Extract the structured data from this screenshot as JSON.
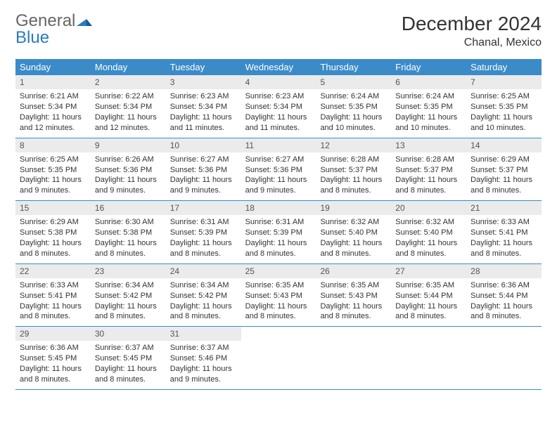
{
  "logo": {
    "word1": "General",
    "word2": "Blue"
  },
  "title": "December 2024",
  "location": "Chanal, Mexico",
  "colors": {
    "header_bg": "#3b8bc9",
    "header_text": "#ffffff",
    "daynum_bg": "#ebebeb",
    "row_border": "#3b8bc9",
    "text": "#333333",
    "logo_gray": "#666666",
    "logo_blue": "#2b7bbf",
    "background": "#ffffff"
  },
  "fonts": {
    "title_pt": 28,
    "location_pt": 16,
    "dayheader_pt": 13,
    "daynum_pt": 12,
    "body_pt": 11
  },
  "day_names": [
    "Sunday",
    "Monday",
    "Tuesday",
    "Wednesday",
    "Thursday",
    "Friday",
    "Saturday"
  ],
  "weeks": [
    [
      {
        "n": "1",
        "sunrise": "Sunrise: 6:21 AM",
        "sunset": "Sunset: 5:34 PM",
        "daylight": "Daylight: 11 hours and 12 minutes."
      },
      {
        "n": "2",
        "sunrise": "Sunrise: 6:22 AM",
        "sunset": "Sunset: 5:34 PM",
        "daylight": "Daylight: 11 hours and 12 minutes."
      },
      {
        "n": "3",
        "sunrise": "Sunrise: 6:23 AM",
        "sunset": "Sunset: 5:34 PM",
        "daylight": "Daylight: 11 hours and 11 minutes."
      },
      {
        "n": "4",
        "sunrise": "Sunrise: 6:23 AM",
        "sunset": "Sunset: 5:34 PM",
        "daylight": "Daylight: 11 hours and 11 minutes."
      },
      {
        "n": "5",
        "sunrise": "Sunrise: 6:24 AM",
        "sunset": "Sunset: 5:35 PM",
        "daylight": "Daylight: 11 hours and 10 minutes."
      },
      {
        "n": "6",
        "sunrise": "Sunrise: 6:24 AM",
        "sunset": "Sunset: 5:35 PM",
        "daylight": "Daylight: 11 hours and 10 minutes."
      },
      {
        "n": "7",
        "sunrise": "Sunrise: 6:25 AM",
        "sunset": "Sunset: 5:35 PM",
        "daylight": "Daylight: 11 hours and 10 minutes."
      }
    ],
    [
      {
        "n": "8",
        "sunrise": "Sunrise: 6:25 AM",
        "sunset": "Sunset: 5:35 PM",
        "daylight": "Daylight: 11 hours and 9 minutes."
      },
      {
        "n": "9",
        "sunrise": "Sunrise: 6:26 AM",
        "sunset": "Sunset: 5:36 PM",
        "daylight": "Daylight: 11 hours and 9 minutes."
      },
      {
        "n": "10",
        "sunrise": "Sunrise: 6:27 AM",
        "sunset": "Sunset: 5:36 PM",
        "daylight": "Daylight: 11 hours and 9 minutes."
      },
      {
        "n": "11",
        "sunrise": "Sunrise: 6:27 AM",
        "sunset": "Sunset: 5:36 PM",
        "daylight": "Daylight: 11 hours and 9 minutes."
      },
      {
        "n": "12",
        "sunrise": "Sunrise: 6:28 AM",
        "sunset": "Sunset: 5:37 PM",
        "daylight": "Daylight: 11 hours and 8 minutes."
      },
      {
        "n": "13",
        "sunrise": "Sunrise: 6:28 AM",
        "sunset": "Sunset: 5:37 PM",
        "daylight": "Daylight: 11 hours and 8 minutes."
      },
      {
        "n": "14",
        "sunrise": "Sunrise: 6:29 AM",
        "sunset": "Sunset: 5:37 PM",
        "daylight": "Daylight: 11 hours and 8 minutes."
      }
    ],
    [
      {
        "n": "15",
        "sunrise": "Sunrise: 6:29 AM",
        "sunset": "Sunset: 5:38 PM",
        "daylight": "Daylight: 11 hours and 8 minutes."
      },
      {
        "n": "16",
        "sunrise": "Sunrise: 6:30 AM",
        "sunset": "Sunset: 5:38 PM",
        "daylight": "Daylight: 11 hours and 8 minutes."
      },
      {
        "n": "17",
        "sunrise": "Sunrise: 6:31 AM",
        "sunset": "Sunset: 5:39 PM",
        "daylight": "Daylight: 11 hours and 8 minutes."
      },
      {
        "n": "18",
        "sunrise": "Sunrise: 6:31 AM",
        "sunset": "Sunset: 5:39 PM",
        "daylight": "Daylight: 11 hours and 8 minutes."
      },
      {
        "n": "19",
        "sunrise": "Sunrise: 6:32 AM",
        "sunset": "Sunset: 5:40 PM",
        "daylight": "Daylight: 11 hours and 8 minutes."
      },
      {
        "n": "20",
        "sunrise": "Sunrise: 6:32 AM",
        "sunset": "Sunset: 5:40 PM",
        "daylight": "Daylight: 11 hours and 8 minutes."
      },
      {
        "n": "21",
        "sunrise": "Sunrise: 6:33 AM",
        "sunset": "Sunset: 5:41 PM",
        "daylight": "Daylight: 11 hours and 8 minutes."
      }
    ],
    [
      {
        "n": "22",
        "sunrise": "Sunrise: 6:33 AM",
        "sunset": "Sunset: 5:41 PM",
        "daylight": "Daylight: 11 hours and 8 minutes."
      },
      {
        "n": "23",
        "sunrise": "Sunrise: 6:34 AM",
        "sunset": "Sunset: 5:42 PM",
        "daylight": "Daylight: 11 hours and 8 minutes."
      },
      {
        "n": "24",
        "sunrise": "Sunrise: 6:34 AM",
        "sunset": "Sunset: 5:42 PM",
        "daylight": "Daylight: 11 hours and 8 minutes."
      },
      {
        "n": "25",
        "sunrise": "Sunrise: 6:35 AM",
        "sunset": "Sunset: 5:43 PM",
        "daylight": "Daylight: 11 hours and 8 minutes."
      },
      {
        "n": "26",
        "sunrise": "Sunrise: 6:35 AM",
        "sunset": "Sunset: 5:43 PM",
        "daylight": "Daylight: 11 hours and 8 minutes."
      },
      {
        "n": "27",
        "sunrise": "Sunrise: 6:35 AM",
        "sunset": "Sunset: 5:44 PM",
        "daylight": "Daylight: 11 hours and 8 minutes."
      },
      {
        "n": "28",
        "sunrise": "Sunrise: 6:36 AM",
        "sunset": "Sunset: 5:44 PM",
        "daylight": "Daylight: 11 hours and 8 minutes."
      }
    ],
    [
      {
        "n": "29",
        "sunrise": "Sunrise: 6:36 AM",
        "sunset": "Sunset: 5:45 PM",
        "daylight": "Daylight: 11 hours and 8 minutes."
      },
      {
        "n": "30",
        "sunrise": "Sunrise: 6:37 AM",
        "sunset": "Sunset: 5:45 PM",
        "daylight": "Daylight: 11 hours and 8 minutes."
      },
      {
        "n": "31",
        "sunrise": "Sunrise: 6:37 AM",
        "sunset": "Sunset: 5:46 PM",
        "daylight": "Daylight: 11 hours and 9 minutes."
      },
      null,
      null,
      null,
      null
    ]
  ]
}
